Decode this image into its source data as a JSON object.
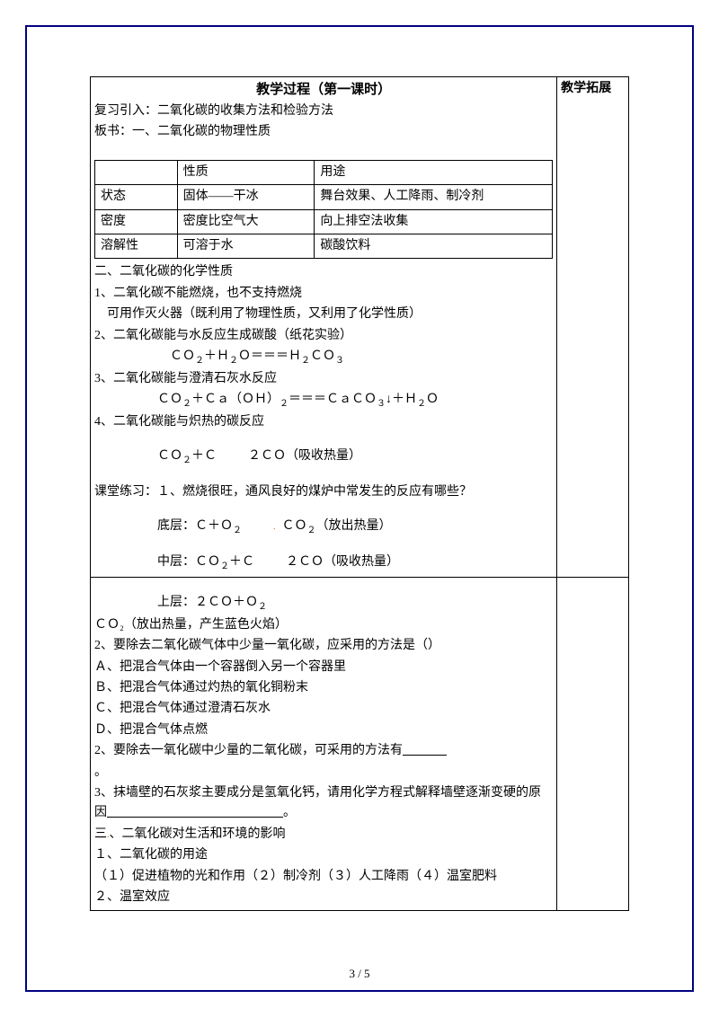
{
  "header": {
    "title": "教学过程（第一课时）",
    "intro1": "复习引入：二氧化碳的收集方法和检验方法",
    "intro2": "板书：一、二氧化碳的物理性质"
  },
  "rightHeader": "教学拓展",
  "propTable": {
    "headers": [
      "",
      "性质",
      "用途"
    ],
    "rows": [
      [
        "状态",
        "固体——干冰",
        "舞台效果、人工降雨、制冷剂"
      ],
      [
        "密度",
        "密度比空气大",
        "向上排空法收集"
      ],
      [
        "溶解性",
        "可溶于水",
        "碳酸饮料"
      ]
    ]
  },
  "section2": {
    "title": "二、二氧化碳的化学性质",
    "p1": "1、二氧化碳不能燃烧，也不支持燃烧",
    "p1b": "可用作灭火器（既利用了物理性质，又利用了化学性质）",
    "p2": "2、二氧化碳能与水反应生成碳酸（纸花实验）",
    "p3": "3、二氧化碳能与澄清石灰水反应",
    "p4": "4、二氧化碳能与炽热的碳反应"
  },
  "exercise": {
    "title": "课堂练习：１、燃烧很旺，通风良好的煤炉中常发生的反应有哪些？",
    "bottom_pre": "底层：",
    "bottom_post": "（放出热量）",
    "middle_pre": "中层：",
    "middle_post": "（吸收热量）",
    "top_pre": "上层："
  },
  "lower": {
    "co2_note": "ＣＯ₂（放出热量，产生蓝色火焰）",
    "q2": "2、要除去二氧化碳气体中少量一氧化碳，应采用的方法是（）",
    "qA": "Ａ、把混合气体由一个容器倒入另一个容器里",
    "qB": "Ｂ、把混合气体通过灼热的氧化铜粉末",
    "qC": "Ｃ、把混合气体通过澄清石灰水",
    "qD": "Ｄ、把混合气体点燃",
    "q2b": "2、要除去一氧化碳中少量的二氧化碳，可采用的方法有",
    "period": "。",
    "q3": "3、抹墙壁的石灰浆主要成分是氢氧化钙，请用化学方程式解释墙壁逐渐变硬的原因",
    "q3end": "。",
    "s3title": "三、二氧化碳对生活和环境的影响",
    "s3p1": "１、二氧化碳的用途",
    "s3p2": "（１）促进植物的光和作用（２）制冷剂（３）人工降雨（４）温室肥料",
    "s3p3": "２、温室效应"
  },
  "pageNum": "3 / 5",
  "colors": {
    "border": "#000080",
    "text": "#000000",
    "accent": "#d2691e"
  }
}
